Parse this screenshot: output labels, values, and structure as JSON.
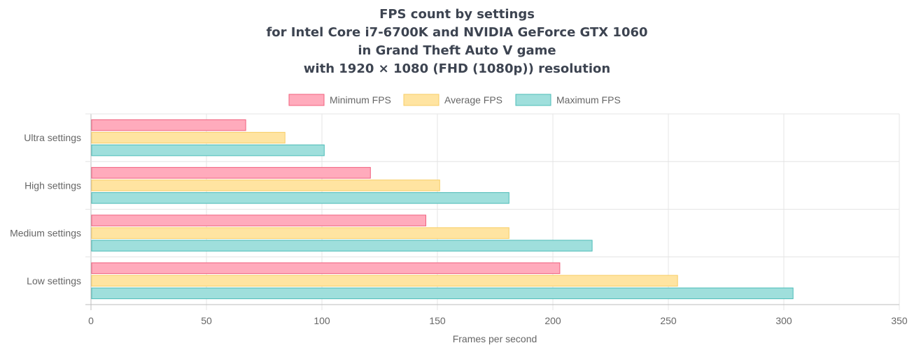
{
  "chart_data": {
    "type": "bar",
    "orientation": "horizontal",
    "title": [
      "FPS count by settings",
      "for Intel Core i7-6700K and NVIDIA GeForce GTX 1060",
      "in Grand Theft Auto V game",
      "with 1920 × 1080 (FHD (1080p)) resolution"
    ],
    "categories": [
      "Ultra settings",
      "High settings",
      "Medium settings",
      "Low settings"
    ],
    "series": [
      {
        "name": "Minimum FPS",
        "values": [
          67,
          121,
          145,
          203
        ],
        "fill": "#ffabbc",
        "stroke": "#f0607e"
      },
      {
        "name": "Average FPS",
        "values": [
          84,
          151,
          181,
          254
        ],
        "fill": "#ffe4a1",
        "stroke": "#f7cd66"
      },
      {
        "name": "Maximum FPS",
        "values": [
          101,
          181,
          217,
          304
        ],
        "fill": "#9fdfdc",
        "stroke": "#4cbcb8"
      }
    ],
    "xlabel": "Frames per second",
    "xlim": [
      0,
      350
    ],
    "xticks": [
      0,
      50,
      100,
      150,
      200,
      250,
      300,
      350
    ],
    "grid": true,
    "legend_position": "top"
  }
}
